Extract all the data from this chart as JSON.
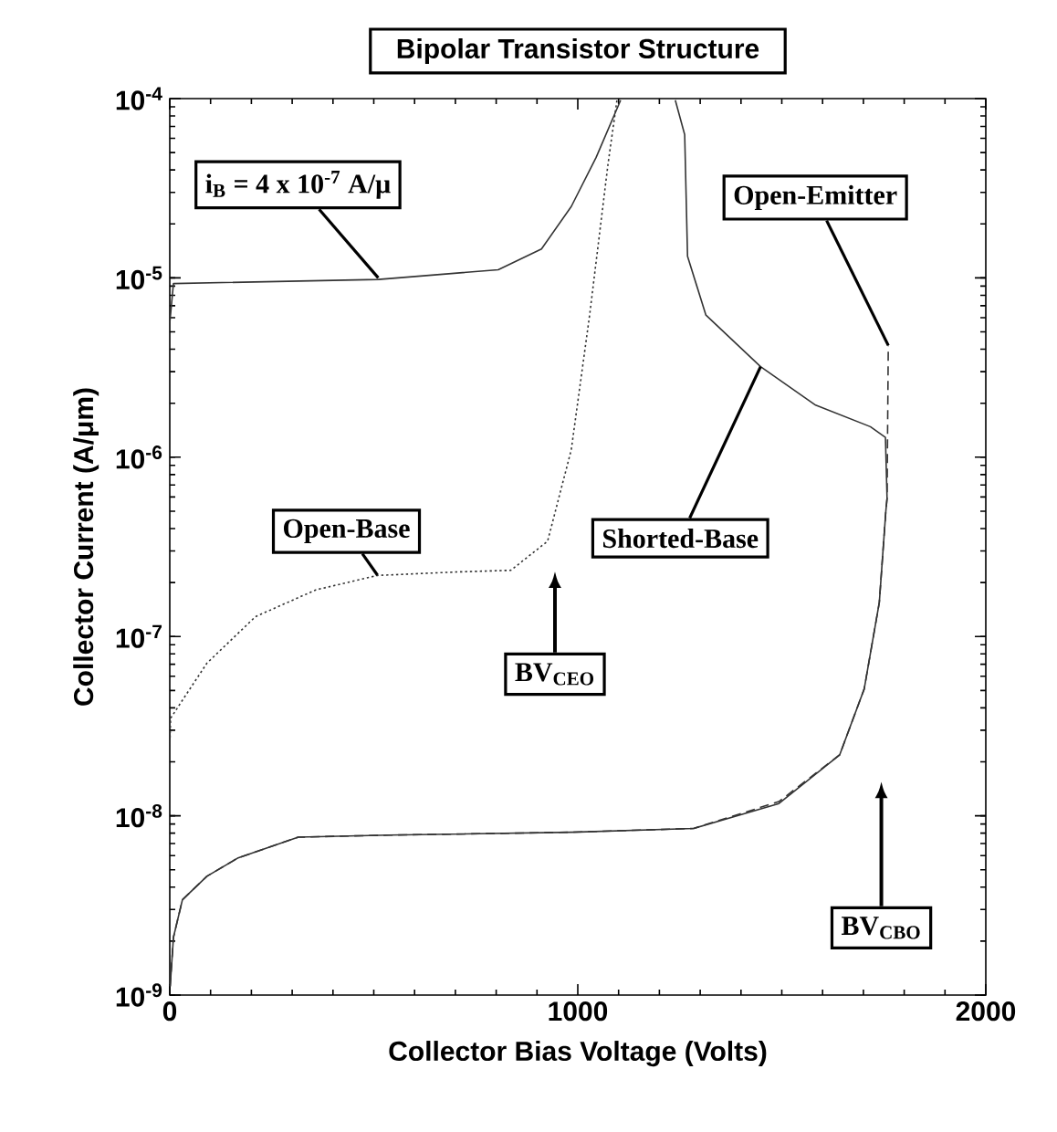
{
  "chart_data": {
    "type": "line",
    "title": "Bipolar Transistor Structure",
    "xlabel": "Collector Bias Voltage  (Volts)",
    "ylabel": "Collector Current  (A/μm)",
    "log": "y",
    "xlim": [
      0,
      2000
    ],
    "xticks": [
      0,
      1000,
      2000
    ],
    "ylim": [
      1e-09,
      0.0001
    ],
    "yticks": [
      {
        "value": 1e-09,
        "label": "10$^{-9}$"
      },
      {
        "value": 1e-08,
        "label": "10$^{-8}$"
      },
      {
        "value": 1e-07,
        "label": "10$^{-7}$"
      },
      {
        "value": 1e-06,
        "label": "10$^{-6}$"
      },
      {
        "value": 1e-05,
        "label": "10$^{-5}$"
      },
      {
        "value": 0.0001,
        "label": "10$^{-4}$"
      }
    ],
    "grid": false,
    "marker": "none",
    "series": [
      {
        "color": "#333333",
        "line_style": "solid",
        "x": [
          0,
          9,
          511,
          805,
          911,
          984,
          1045,
          1105
        ],
        "values": [
          5.6e-06,
          9.3e-06,
          9.8e-06,
          1.11e-05,
          1.45e-05,
          2.5e-05,
          4.7e-05,
          9.8e-05
        ]
      },
      {
        "color": "#333333",
        "line_style": "dotted",
        "x": [
          0,
          2,
          91,
          210,
          358,
          509,
          702,
          836,
          926,
          984,
          1029,
          1074,
          1096
        ],
        "values": [
          2.4e-08,
          3.5e-08,
          7.1e-08,
          1.29e-07,
          1.82e-07,
          2.19e-07,
          2.29e-07,
          2.34e-07,
          3.4e-07,
          1.1e-06,
          6.2e-06,
          4.3e-05,
          9.8e-05
        ]
      },
      {
        "color": "#333333",
        "line_style": "solid",
        "x": [
          1,
          9,
          31,
          91,
          166,
          315,
          537,
          986,
          1284,
          1493,
          1642,
          1702,
          1739,
          1755,
          1758,
          1754,
          1717,
          1583,
          1448,
          1314,
          1269,
          1262,
          1239
        ],
        "values": [
          1.12e-09,
          2.1e-09,
          3.4e-09,
          4.6e-09,
          5.8e-09,
          7.6e-09,
          7.8e-09,
          8.1e-09,
          8.5e-09,
          1.17e-08,
          2.19e-08,
          5.1e-08,
          1.55e-07,
          5e-07,
          5.9e-07,
          1.29e-06,
          1.48e-06,
          1.95e-06,
          3.2e-06,
          6.2e-06,
          1.32e-05,
          6.3e-05,
          9.8e-05
        ]
      },
      {
        "color": "#333333",
        "line_style": "dashed",
        "x": [
          1,
          9,
          31,
          91,
          166,
          315,
          537,
          986,
          1284,
          1493,
          1642,
          1702,
          1739,
          1755,
          1758,
          1761
        ],
        "values": [
          1.12e-09,
          2.1e-09,
          3.4e-09,
          4.6e-09,
          5.8e-09,
          7.6e-09,
          7.8e-09,
          8.1e-09,
          8.5e-09,
          1.2e-08,
          2.19e-08,
          5.1e-08,
          1.55e-07,
          5e-07,
          5.9e-07,
          4.2e-06
        ]
      }
    ],
    "annotations": [
      {
        "text": "i$_{B}$ = 4 x 10$^{-7}$ A/μ",
        "x": 511,
        "y": 1e-05
      },
      {
        "text": "Open-Base",
        "x": 509,
        "y": 2.2e-07
      },
      {
        "text": "Shorted-Base",
        "x": 1448,
        "y": 3.2e-06
      },
      {
        "text": "Open-Emitter",
        "x": 1761,
        "y": 4.2e-06
      },
      "BV$_{CEO}$",
      "BV$_{CBO}$"
    ]
  }
}
